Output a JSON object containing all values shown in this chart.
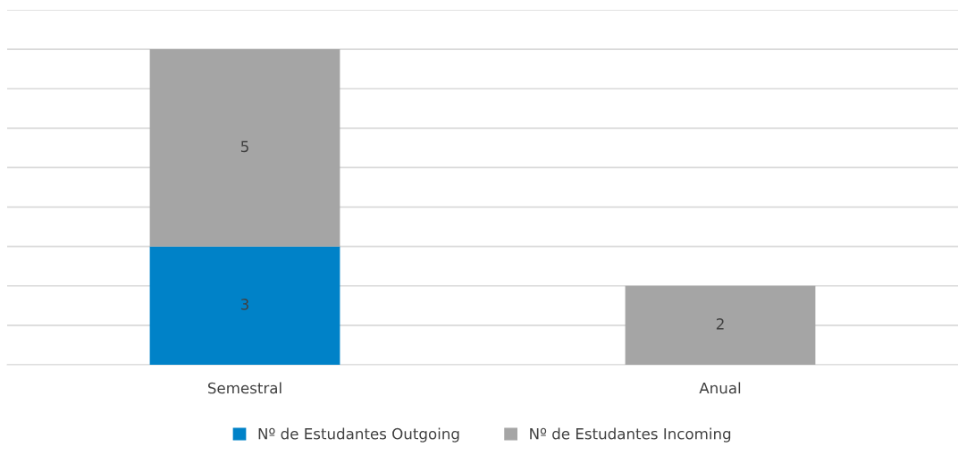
{
  "chart_data": {
    "type": "bar",
    "stacked": true,
    "categories": [
      "Semestral",
      "Anual"
    ],
    "series": [
      {
        "name": "Nº de Estudantes Outgoing",
        "color": "#0082c8",
        "values": [
          3,
          null
        ]
      },
      {
        "name": "Nº de Estudantes Incoming",
        "color": "#a5a5a5",
        "values": [
          5,
          2
        ]
      }
    ],
    "data_labels": true,
    "ylim": [
      0,
      9
    ],
    "yticks": [
      {
        "value": 0,
        "label": null
      },
      {
        "value": 1,
        "label": null
      },
      {
        "value": 2,
        "label": null
      },
      {
        "value": 3,
        "label": null
      },
      {
        "value": 4,
        "label": null
      },
      {
        "value": 5,
        "label": null
      },
      {
        "value": 6,
        "label": null
      },
      {
        "value": 7,
        "label": null
      },
      {
        "value": 8,
        "label": null
      },
      {
        "value": 9,
        "label": null
      }
    ],
    "tick_labels": "x",
    "grid": "y",
    "legend": "bottom"
  }
}
